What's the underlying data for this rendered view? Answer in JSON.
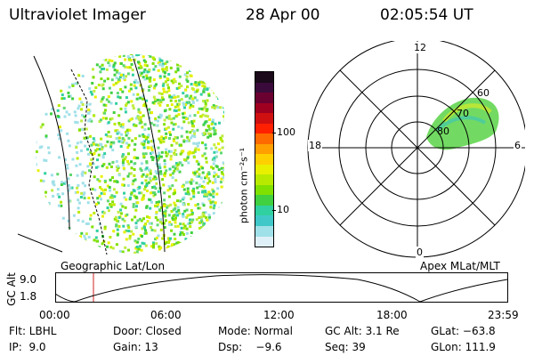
{
  "header": {
    "instrument": "Ultraviolet Imager",
    "date": "28 Apr 00",
    "time": "02:05:54 UT"
  },
  "colorbar": {
    "unit_label": "photon cm⁻²s⁻¹",
    "ticks": [
      "100",
      "10"
    ],
    "colors": [
      "#1a0a1a",
      "#3a0a3a",
      "#6a0030",
      "#a00020",
      "#d01010",
      "#ff2000",
      "#ff6a00",
      "#ffa000",
      "#ffd000",
      "#e8f000",
      "#b8ea00",
      "#80e000",
      "#40d040",
      "#30d0a0",
      "#40c8c8",
      "#a0e0e8",
      "#e0f0f8"
    ]
  },
  "polar": {
    "mlt_labels": [
      "12",
      "18",
      "6",
      "0"
    ],
    "mlat_labels": [
      "60",
      "70",
      "80"
    ]
  },
  "projections": {
    "left": "Geographic Lat/Lon",
    "right": "Apex MLat/MLT"
  },
  "altitude_plot": {
    "y_axis_title": "GC Alt",
    "y_ticks": [
      "9.0",
      "1.8"
    ],
    "x_ticks": [
      "00:00",
      "06:00",
      "12:00",
      "18:00",
      "23:59"
    ],
    "marker_color": "#d02020"
  },
  "footer": {
    "flt": "Flt: LBHL",
    "door": "Door: Closed",
    "mode": "Mode: Normal",
    "gc_alt": "GC Alt: 3.1 Re",
    "glat": "GLat: −63.8",
    "ip": "IP:  9.0",
    "gain": "Gain: 13",
    "dsp": "Dsp:    −9.6",
    "seq": "Seq: 39",
    "glon": "GLon: 111.9"
  }
}
